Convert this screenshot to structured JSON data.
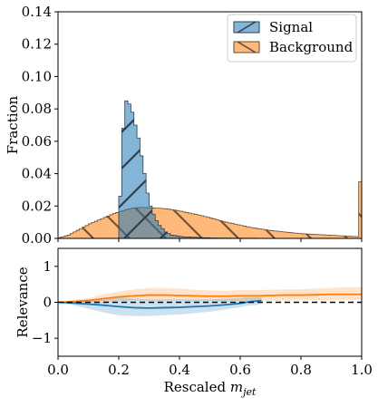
{
  "chart_data": [
    {
      "type": "histogram",
      "panel": "top",
      "ylabel": "Fraction",
      "xlabel": "",
      "xlim": [
        0.0,
        1.0
      ],
      "ylim": [
        0.0,
        0.14
      ],
      "xticks": [
        "0.0",
        "0.2",
        "0.4",
        "0.6",
        "0.8",
        "1.0"
      ],
      "show_xtick_labels": false,
      "yticks": [
        "0.00",
        "0.02",
        "0.04",
        "0.06",
        "0.08",
        "0.10",
        "0.12",
        "0.14"
      ],
      "legend_position": "top-right",
      "grid": false,
      "series": [
        {
          "name": "Signal",
          "color": "#1f77b4",
          "hatch": "diagonal-wide",
          "bin_start": 0.2,
          "bin_width": 0.01,
          "values": [
            0.026,
            0.068,
            0.085,
            0.083,
            0.078,
            0.07,
            0.062,
            0.051,
            0.04,
            0.028,
            0.02,
            0.015,
            0.011,
            0.008,
            0.006,
            0.004,
            0.003,
            0.002,
            0.0018,
            0.0015,
            0.0012,
            0.001,
            0.0009,
            0.0008,
            0.0007,
            0.0006,
            0.0005,
            0.0005,
            0.0004,
            0.0004,
            0.0003,
            0.0003,
            0.0003,
            0.0002,
            0.0002,
            0.0002,
            0.0002,
            0.0001,
            0.0001,
            0.0001,
            0.0001,
            0.0001,
            0.0001,
            0.0001,
            0.0001,
            0.0001,
            0.0,
            0.0
          ]
        },
        {
          "name": "Background",
          "color": "#ff7f0e",
          "hatch": "diagonal-wide",
          "bin_start": 0.0,
          "bin_width": 0.01,
          "values": [
            0.0005,
            0.001,
            0.0015,
            0.002,
            0.003,
            0.004,
            0.005,
            0.006,
            0.007,
            0.008,
            0.009,
            0.0098,
            0.0106,
            0.0114,
            0.0122,
            0.013,
            0.0138,
            0.0146,
            0.0154,
            0.016,
            0.0166,
            0.0172,
            0.0178,
            0.0182,
            0.0186,
            0.0188,
            0.019,
            0.0191,
            0.0191,
            0.019,
            0.0189,
            0.0188,
            0.0187,
            0.0186,
            0.0185,
            0.0183,
            0.0181,
            0.0178,
            0.0175,
            0.0172,
            0.0168,
            0.0164,
            0.016,
            0.0156,
            0.0152,
            0.0148,
            0.0144,
            0.014,
            0.0135,
            0.013,
            0.0125,
            0.012,
            0.0115,
            0.011,
            0.0105,
            0.01,
            0.0096,
            0.0092,
            0.0088,
            0.0084,
            0.008,
            0.0076,
            0.0072,
            0.0068,
            0.0065,
            0.0062,
            0.0059,
            0.0056,
            0.0053,
            0.005,
            0.0048,
            0.0046,
            0.0044,
            0.0042,
            0.004,
            0.0038,
            0.0036,
            0.0034,
            0.0032,
            0.003,
            0.0029,
            0.0028,
            0.0027,
            0.0026,
            0.0025,
            0.0024,
            0.0023,
            0.0022,
            0.0021,
            0.002,
            0.0019,
            0.0018,
            0.0017,
            0.0016,
            0.0015,
            0.0014,
            0.0013,
            0.0012,
            0.0011,
            0.035
          ]
        }
      ]
    },
    {
      "type": "line",
      "panel": "bottom",
      "ylabel": "Relevance",
      "xlabel_text": "Rescaled ",
      "xlabel_math": "m",
      "xlabel_sub": "jet",
      "xlim": [
        0.0,
        1.0
      ],
      "ylim": [
        -1.5,
        1.5
      ],
      "xticks": [
        "0.0",
        "0.2",
        "0.4",
        "0.6",
        "0.8",
        "1.0"
      ],
      "yticks": [
        "−1",
        "0",
        "1"
      ],
      "ytick_values": [
        -1,
        0,
        1
      ],
      "reference_line": {
        "y": 0,
        "style": "dashed",
        "color": "#000000"
      },
      "grid": false,
      "series": [
        {
          "name": "Signal",
          "color": "#1f77b4",
          "x": [
            0.0,
            0.05,
            0.1,
            0.15,
            0.2,
            0.25,
            0.3,
            0.35,
            0.4,
            0.45,
            0.5,
            0.55,
            0.6,
            0.62,
            0.65,
            0.67
          ],
          "y": [
            0.0,
            -0.02,
            -0.05,
            -0.08,
            -0.12,
            -0.15,
            -0.16,
            -0.15,
            -0.14,
            -0.12,
            -0.1,
            -0.07,
            -0.03,
            0.0,
            0.03,
            0.05
          ],
          "band_low": [
            0.0,
            -0.08,
            -0.18,
            -0.28,
            -0.36,
            -0.38,
            -0.38,
            -0.36,
            -0.34,
            -0.3,
            -0.26,
            -0.2,
            -0.14,
            -0.1,
            -0.08,
            -0.05
          ],
          "band_high": [
            0.0,
            0.04,
            0.08,
            0.12,
            0.14,
            0.1,
            0.08,
            0.08,
            0.08,
            0.08,
            0.08,
            0.1,
            0.12,
            0.14,
            0.14,
            0.15
          ]
        },
        {
          "name": "Background",
          "color": "#ff7f0e",
          "x": [
            0.0,
            0.05,
            0.1,
            0.15,
            0.2,
            0.25,
            0.3,
            0.35,
            0.4,
            0.45,
            0.5,
            0.55,
            0.6,
            0.65,
            0.7,
            0.75,
            0.8,
            0.85,
            0.9,
            0.95,
            1.0
          ],
          "y": [
            0.0,
            0.02,
            0.05,
            0.1,
            0.15,
            0.18,
            0.2,
            0.2,
            0.19,
            0.18,
            0.17,
            0.17,
            0.18,
            0.18,
            0.19,
            0.2,
            0.2,
            0.21,
            0.22,
            0.22,
            0.22
          ],
          "band_low": [
            0.0,
            -0.02,
            -0.01,
            0.02,
            0.04,
            0.05,
            0.05,
            0.05,
            0.05,
            0.04,
            0.04,
            0.03,
            0.03,
            0.03,
            0.04,
            0.05,
            0.05,
            0.06,
            0.06,
            0.07,
            0.07
          ],
          "band_high": [
            0.0,
            0.06,
            0.12,
            0.22,
            0.3,
            0.36,
            0.4,
            0.4,
            0.38,
            0.35,
            0.33,
            0.32,
            0.34,
            0.34,
            0.35,
            0.36,
            0.36,
            0.38,
            0.4,
            0.42,
            0.42
          ]
        }
      ]
    }
  ]
}
